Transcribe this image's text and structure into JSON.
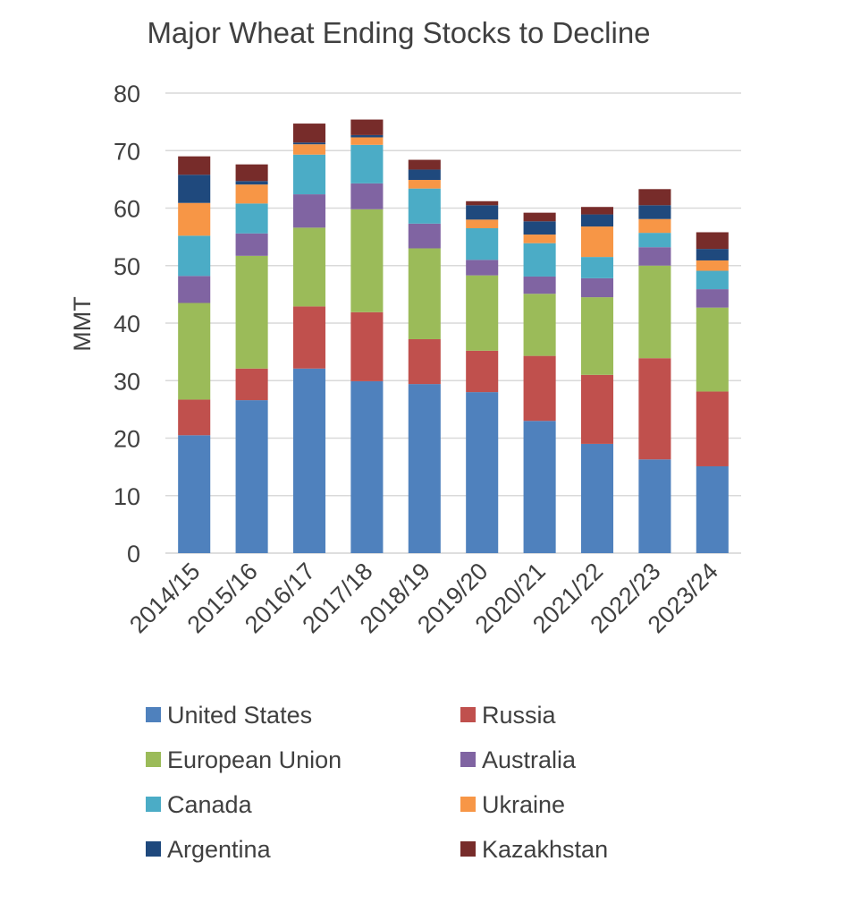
{
  "chart_data": {
    "type": "bar",
    "stacked": true,
    "title": "Major Wheat Ending Stocks to Decline",
    "xlabel": "",
    "ylabel": "MMT",
    "ylim": [
      0,
      80
    ],
    "yticks": [
      0,
      10,
      20,
      30,
      40,
      50,
      60,
      70,
      80
    ],
    "grid": true,
    "legend_position": "bottom",
    "categories": [
      "2014/15",
      "2015/16",
      "2016/17",
      "2017/18",
      "2018/19",
      "2019/20",
      "2020/21",
      "2021/22",
      "2022/23",
      "2023/24"
    ],
    "series": [
      {
        "name": "United States",
        "color": "#4F81BD",
        "values": [
          20.5,
          26.6,
          32.1,
          29.9,
          29.4,
          28.0,
          23.0,
          19.0,
          16.3,
          15.1
        ]
      },
      {
        "name": "Russia",
        "color": "#C0504D",
        "values": [
          6.2,
          5.5,
          10.8,
          12.0,
          7.8,
          7.2,
          11.3,
          12.0,
          17.6,
          13.0
        ]
      },
      {
        "name": "European Union",
        "color": "#9BBB59",
        "values": [
          16.8,
          19.6,
          13.7,
          17.9,
          15.8,
          13.1,
          10.8,
          13.5,
          16.1,
          14.6
        ]
      },
      {
        "name": "Australia",
        "color": "#8064A2",
        "values": [
          4.7,
          3.9,
          5.8,
          4.5,
          4.3,
          2.7,
          3.0,
          3.3,
          3.2,
          3.2
        ]
      },
      {
        "name": "Canada",
        "color": "#4BACC6",
        "values": [
          7.0,
          5.2,
          6.9,
          6.7,
          6.1,
          5.5,
          5.8,
          3.7,
          2.5,
          3.2
        ]
      },
      {
        "name": "Ukraine",
        "color": "#F79646",
        "values": [
          5.7,
          3.3,
          1.8,
          1.3,
          1.5,
          1.5,
          1.5,
          5.3,
          2.4,
          1.8
        ]
      },
      {
        "name": "Argentina",
        "color": "#1F497D",
        "values": [
          4.9,
          0.6,
          0.3,
          0.4,
          1.8,
          2.5,
          2.3,
          2.1,
          2.4,
          2.0
        ]
      },
      {
        "name": "Kazakhstan",
        "color": "#772C2A",
        "values": [
          3.2,
          2.9,
          3.3,
          2.7,
          1.7,
          0.7,
          1.5,
          1.3,
          2.8,
          2.9
        ]
      }
    ]
  }
}
